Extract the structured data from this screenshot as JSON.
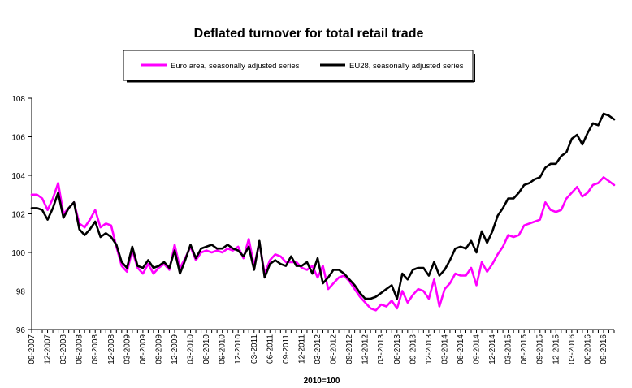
{
  "chart_data": {
    "type": "line",
    "title": "Deflated turnover for total retail trade",
    "xlabel": "2010=100",
    "ylabel": "",
    "ylim": [
      96,
      108
    ],
    "yticks": [
      96,
      98,
      100,
      102,
      104,
      106,
      108
    ],
    "grid": false,
    "legend_placement": "top",
    "x_start": "09-2007",
    "x_tick_labels": [
      "09-2007",
      "12-2007",
      "03-2008",
      "06-2008",
      "09-2008",
      "12-2008",
      "03-2009",
      "06-2009",
      "09-2009",
      "12-2009",
      "03-2010",
      "06-2010",
      "09-2010",
      "12-2010",
      "03-2011",
      "06-2011",
      "09-2011",
      "12-2011",
      "03-2012",
      "06-2012",
      "09-2012",
      "12-2012",
      "03-2013",
      "06-2013",
      "09-2013",
      "12-2013",
      "03-2014",
      "06-2014",
      "09-2014",
      "12-2014",
      "03-2015",
      "06-2015",
      "09-2015",
      "12-2015",
      "03-2016",
      "06-2016",
      "09-2016"
    ],
    "series": [
      {
        "name": "Euro area, seasonally adjusted series",
        "color": "#ff00ff",
        "values": [
          103.0,
          103.0,
          102.8,
          102.2,
          102.8,
          103.6,
          102.0,
          102.3,
          102.6,
          101.5,
          101.3,
          101.7,
          102.2,
          101.3,
          101.5,
          101.4,
          100.3,
          99.3,
          99.0,
          100.1,
          99.2,
          98.9,
          99.4,
          98.9,
          99.2,
          99.4,
          99.1,
          100.4,
          99.2,
          99.7,
          100.3,
          99.6,
          100.0,
          100.1,
          100.0,
          100.1,
          100.0,
          100.2,
          100.1,
          100.3,
          99.7,
          100.7,
          99.3,
          100.5,
          98.9,
          99.6,
          99.9,
          99.8,
          99.5,
          99.5,
          99.5,
          99.2,
          99.1,
          99.3,
          98.7,
          99.3,
          98.1,
          98.4,
          98.7,
          98.8,
          98.5,
          98.1,
          97.7,
          97.4,
          97.1,
          97.0,
          97.3,
          97.2,
          97.5,
          97.1,
          98.0,
          97.4,
          97.8,
          98.1,
          98.0,
          97.6,
          98.6,
          97.2,
          98.1,
          98.4,
          98.9,
          98.8,
          98.8,
          99.2,
          98.3,
          99.5,
          99.0,
          99.4,
          99.9,
          100.3,
          100.9,
          100.8,
          100.9,
          101.4,
          101.5,
          101.6,
          101.7,
          102.6,
          102.2,
          102.1,
          102.2,
          102.8,
          103.1,
          103.4,
          102.9,
          103.1,
          103.5,
          103.6,
          103.9,
          103.7,
          103.5
        ]
      },
      {
        "name": "EU28, seasonally adjusted series",
        "color": "#000000",
        "values": [
          102.3,
          102.3,
          102.2,
          101.7,
          102.3,
          103.1,
          101.8,
          102.3,
          102.6,
          101.2,
          100.9,
          101.2,
          101.6,
          100.8,
          101.0,
          100.8,
          100.4,
          99.5,
          99.2,
          100.3,
          99.3,
          99.2,
          99.6,
          99.2,
          99.3,
          99.5,
          99.2,
          100.1,
          98.9,
          99.6,
          100.4,
          99.7,
          100.2,
          100.3,
          100.4,
          100.2,
          100.2,
          100.4,
          100.2,
          100.1,
          99.8,
          100.3,
          99.1,
          100.6,
          98.7,
          99.4,
          99.6,
          99.4,
          99.3,
          99.8,
          99.3,
          99.3,
          99.5,
          98.9,
          99.7,
          98.4,
          98.7,
          99.1,
          99.1,
          98.9,
          98.6,
          98.3,
          97.9,
          97.6,
          97.6,
          97.7,
          97.9,
          98.1,
          98.3,
          97.6,
          98.9,
          98.6,
          99.1,
          99.2,
          99.2,
          98.8,
          99.5,
          98.8,
          99.1,
          99.6,
          100.2,
          100.3,
          100.2,
          100.6,
          100.0,
          101.1,
          100.5,
          101.1,
          101.9,
          102.3,
          102.8,
          102.8,
          103.1,
          103.5,
          103.6,
          103.8,
          103.9,
          104.4,
          104.6,
          104.6,
          105.0,
          105.2,
          105.9,
          106.1,
          105.6,
          106.2,
          106.7,
          106.6,
          107.2,
          107.1,
          106.9
        ]
      }
    ]
  }
}
